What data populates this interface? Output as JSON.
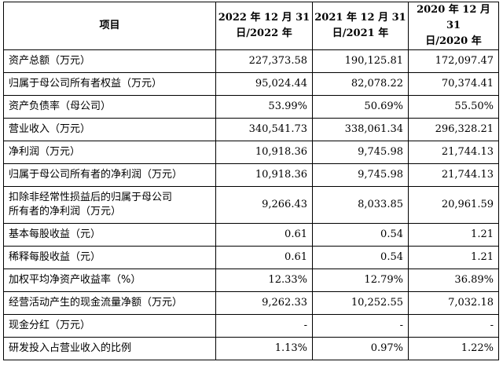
{
  "table": {
    "header": {
      "item": "项目",
      "periods": [
        [
          "2022 年 12 月 31",
          "日/2022 年"
        ],
        [
          "2021 年 12 月 31",
          "日/2021 年"
        ],
        [
          "2020 年 12 月 31",
          "日/2020 年"
        ]
      ]
    },
    "rows": [
      {
        "label": [
          "资产总额（万元）"
        ],
        "values": [
          "227,373.58",
          "190,125.81",
          "172,097.47"
        ]
      },
      {
        "label": [
          "归属于母公司所有者权益（万元）"
        ],
        "values": [
          "95,024.44",
          "82,078.22",
          "70,374.41"
        ]
      },
      {
        "label": [
          "资产负债率（母公司）"
        ],
        "values": [
          "53.99%",
          "50.69%",
          "55.50%"
        ]
      },
      {
        "label": [
          "营业收入（万元）"
        ],
        "values": [
          "340,541.73",
          "338,061.34",
          "296,328.21"
        ]
      },
      {
        "label": [
          "净利润（万元）"
        ],
        "values": [
          "10,918.36",
          "9,745.98",
          "21,744.13"
        ]
      },
      {
        "label": [
          "归属于母公司所有者的净利润（万元）"
        ],
        "values": [
          "10,918.36",
          "9,745.98",
          "21,744.13"
        ]
      },
      {
        "label": [
          "扣除非经常性损益后的归属于母公司",
          "所有者的净利润（万元）"
        ],
        "values": [
          "9,266.43",
          "8,033.85",
          "20,961.59"
        ]
      },
      {
        "label": [
          "基本每股收益（元）"
        ],
        "values": [
          "0.61",
          "0.54",
          "1.21"
        ]
      },
      {
        "label": [
          "稀释每股收益（元）"
        ],
        "values": [
          "0.61",
          "0.54",
          "1.21"
        ]
      },
      {
        "label": [
          "加权平均净资产收益率（%）"
        ],
        "values": [
          "12.33%",
          "12.79%",
          "36.89%"
        ]
      },
      {
        "label": [
          "经营活动产生的现金流量净额（万元）"
        ],
        "values": [
          "9,262.33",
          "10,252.55",
          "7,032.18"
        ]
      },
      {
        "label": [
          "现金分红（万元）"
        ],
        "values": [
          "-",
          "-",
          "-"
        ]
      },
      {
        "label": [
          "研发投入占营业收入的比例"
        ],
        "values": [
          "1.13%",
          "0.97%",
          "1.22%"
        ]
      }
    ]
  }
}
